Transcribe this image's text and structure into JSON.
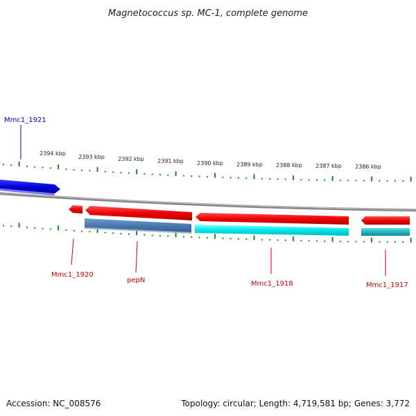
{
  "title": "Magnetococcus sp. MC-1, complete genome",
  "accession": "Accession: NC_008576",
  "topology": "Topology: circular; Length: 4,719,581 bp; Genes: 3,772",
  "kbp_labels": [
    "2394 kbp",
    "2393 kbp",
    "2392 kbp",
    "2391 kbp",
    "2390 kbp",
    "2389 kbp",
    "2388 kbp",
    "2387 kbp",
    "2386 kbp"
  ],
  "gene_labels": {
    "mmc1_1921": "Mmc1_1921",
    "mmc1_1920": "Mmc1_1920",
    "pepN": "pepN",
    "mmc1_1918": "Mmc1_1918",
    "mmc1_1917": "Mmc1_1917"
  },
  "colors": {
    "forward_gene": "#0000dd",
    "reverse_gene": "#ee0000",
    "cds_steel": "#4a7ab0",
    "cds_cyan": "#00e0e0",
    "cds_teal": "#20b8c0",
    "backbone": "#777777",
    "tick": "#1a8a1a"
  }
}
